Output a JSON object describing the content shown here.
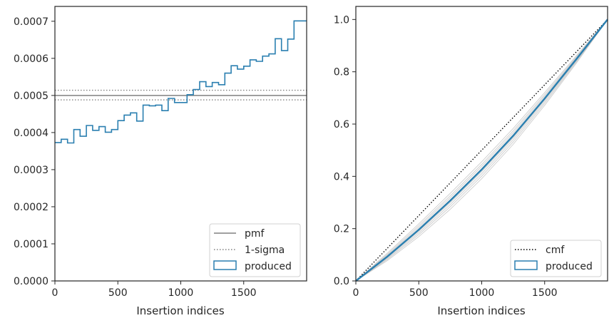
{
  "chart_data": [
    {
      "type": "line",
      "subtype": "histogram-step",
      "xlabel": "Insertion indices",
      "ylabel": "",
      "xlim": [
        0,
        2000
      ],
      "ylim": [
        0,
        0.00074
      ],
      "xticks": [
        0,
        500,
        1000,
        1500
      ],
      "xtick_labels": [
        "0",
        "500",
        "1000",
        "1500"
      ],
      "yticks": [
        0,
        0.0001,
        0.0002,
        0.0003,
        0.0004,
        0.0005,
        0.0006,
        0.0007
      ],
      "ytick_labels": [
        "0.0000",
        "0.0001",
        "0.0002",
        "0.0003",
        "0.0004",
        "0.0005",
        "0.0006",
        "0.0007"
      ],
      "hlines": [
        {
          "name": "pmf",
          "y": 0.0005,
          "style": "solid",
          "color": "#808080"
        },
        {
          "name": "1-sigma",
          "y": 0.000514,
          "style": "dotted",
          "color": "#808080"
        },
        {
          "name": "1-sigma",
          "y": 0.000488,
          "style": "dotted",
          "color": "#808080"
        }
      ],
      "series": [
        {
          "name": "produced",
          "color": "#2a7fb0",
          "bin_edges": [
            0,
            50,
            100,
            150,
            200,
            250,
            300,
            350,
            400,
            450,
            500,
            550,
            600,
            650,
            700,
            750,
            800,
            850,
            900,
            950,
            1000,
            1050,
            1100,
            1150,
            1200,
            1250,
            1300,
            1350,
            1400,
            1450,
            1500,
            1550,
            1600,
            1650,
            1700,
            1750,
            1800,
            1850,
            1900,
            1950,
            2000
          ],
          "values": [
            0.000373,
            0.000382,
            0.000372,
            0.000408,
            0.00039,
            0.000419,
            0.000406,
            0.000416,
            0.000401,
            0.000408,
            0.000432,
            0.000447,
            0.000453,
            0.000431,
            0.000474,
            0.000472,
            0.000474,
            0.000459,
            0.000492,
            0.000481,
            0.000481,
            0.000502,
            0.000516,
            0.000537,
            0.000524,
            0.000535,
            0.000529,
            0.00056,
            0.00058,
            0.000571,
            0.000579,
            0.000596,
            0.000592,
            0.000606,
            0.000612,
            0.000653,
            0.000621,
            0.000652,
            0.000701,
            0.000701
          ]
        }
      ],
      "legend": {
        "placement": "lower-right",
        "entries": [
          "pmf",
          "1-sigma",
          "produced"
        ]
      },
      "grid": false
    },
    {
      "type": "line",
      "xlabel": "Insertion indices",
      "ylabel": "",
      "xlim": [
        0,
        2000
      ],
      "ylim": [
        0,
        1.05
      ],
      "xticks": [
        0,
        500,
        1000,
        1500
      ],
      "xtick_labels": [
        "0",
        "500",
        "1000",
        "1500"
      ],
      "yticks": [
        0.0,
        0.2,
        0.4,
        0.6,
        0.8,
        1.0
      ],
      "ytick_labels": [
        "0.0",
        "0.2",
        "0.4",
        "0.6",
        "0.8",
        "1.0"
      ],
      "series": [
        {
          "name": "cmf",
          "style": "dotted",
          "color": "#000000",
          "x": [
            0,
            2000
          ],
          "y": [
            0,
            1
          ]
        },
        {
          "name": "produced",
          "color": "#2a7fb0",
          "x": [
            0,
            250,
            500,
            750,
            1000,
            1250,
            1500,
            1750,
            2000
          ],
          "y": [
            0,
            0.093,
            0.196,
            0.307,
            0.426,
            0.555,
            0.698,
            0.847,
            1.0
          ]
        }
      ],
      "background_curves": {
        "color": "#b8b8b8",
        "count": 8,
        "offsets": [
          -0.035,
          -0.025,
          -0.016,
          -0.008,
          0.004,
          0.012,
          0.02,
          0.03
        ]
      },
      "legend": {
        "placement": "lower-right",
        "entries": [
          "cmf",
          "produced"
        ]
      },
      "grid": false
    }
  ]
}
